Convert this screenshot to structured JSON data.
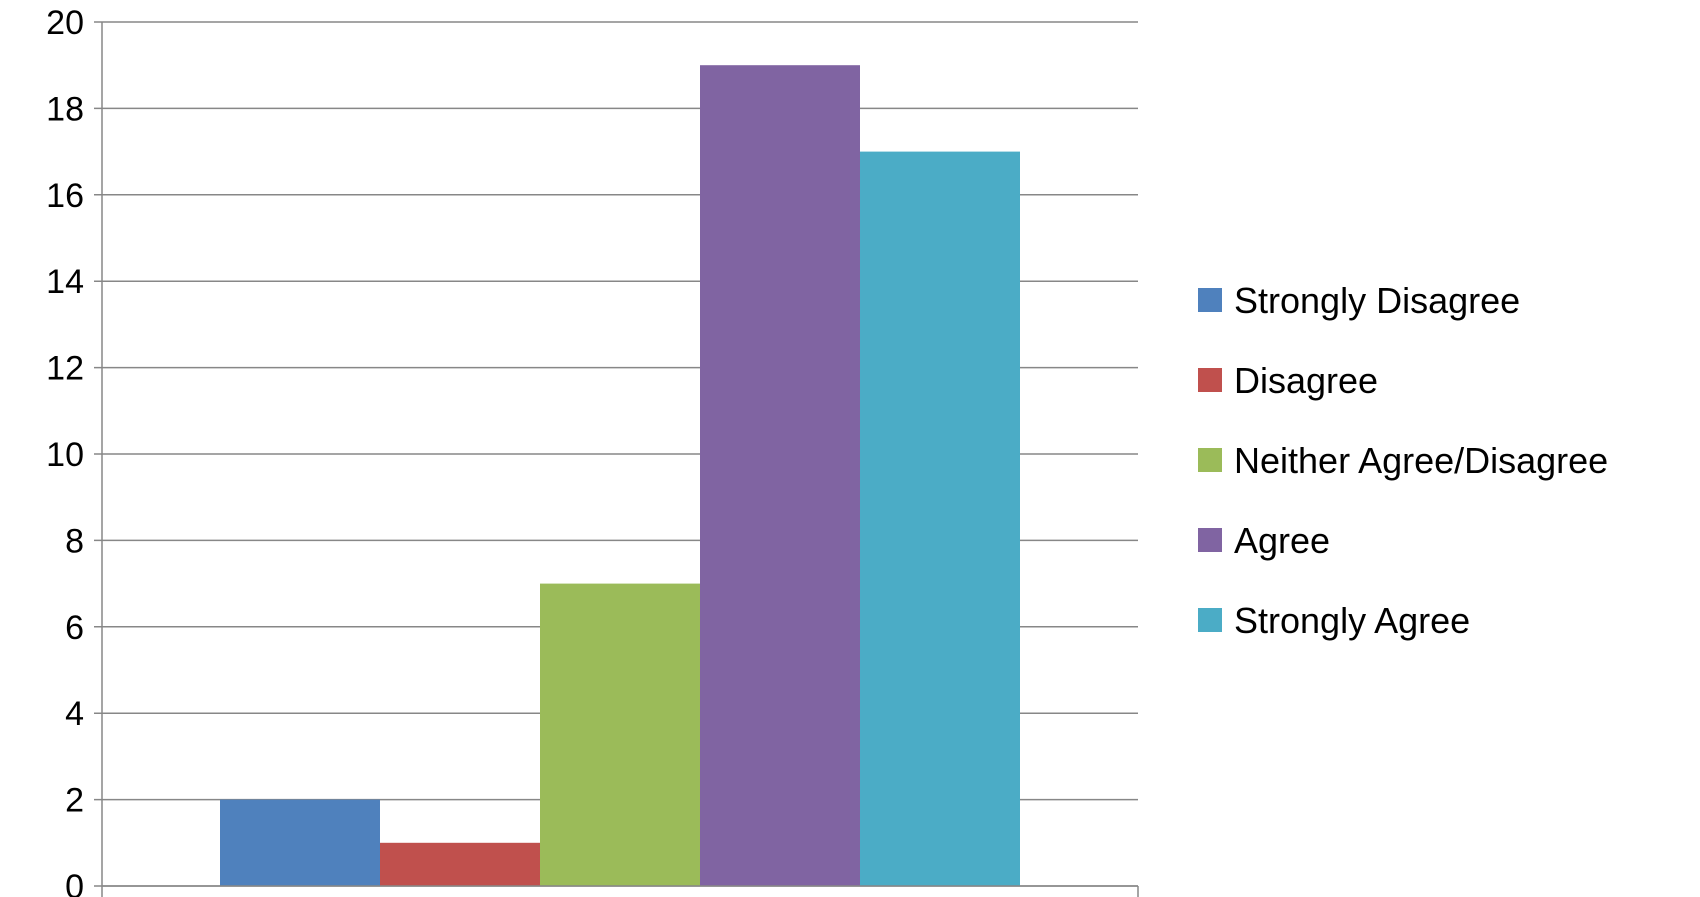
{
  "chart_data": {
    "type": "bar",
    "categories": [
      ""
    ],
    "series": [
      {
        "name": "Strongly Disagree",
        "values": [
          2
        ],
        "color": "#4F81BD"
      },
      {
        "name": "Disagree",
        "values": [
          1
        ],
        "color": "#C0504D"
      },
      {
        "name": "Neither Agree/Disagree",
        "values": [
          7
        ],
        "color": "#9BBB59"
      },
      {
        "name": "Agree",
        "values": [
          19
        ],
        "color": "#8064A2"
      },
      {
        "name": "Strongly Agree",
        "values": [
          17
        ],
        "color": "#4BACC6"
      }
    ],
    "title": "",
    "xlabel": "",
    "ylabel": "",
    "ylim": [
      0,
      20
    ],
    "yticks": [
      "0",
      "2",
      "4",
      "6",
      "8",
      "10",
      "12",
      "14",
      "16",
      "18",
      "20"
    ],
    "grid": true,
    "legend_position": "right"
  }
}
